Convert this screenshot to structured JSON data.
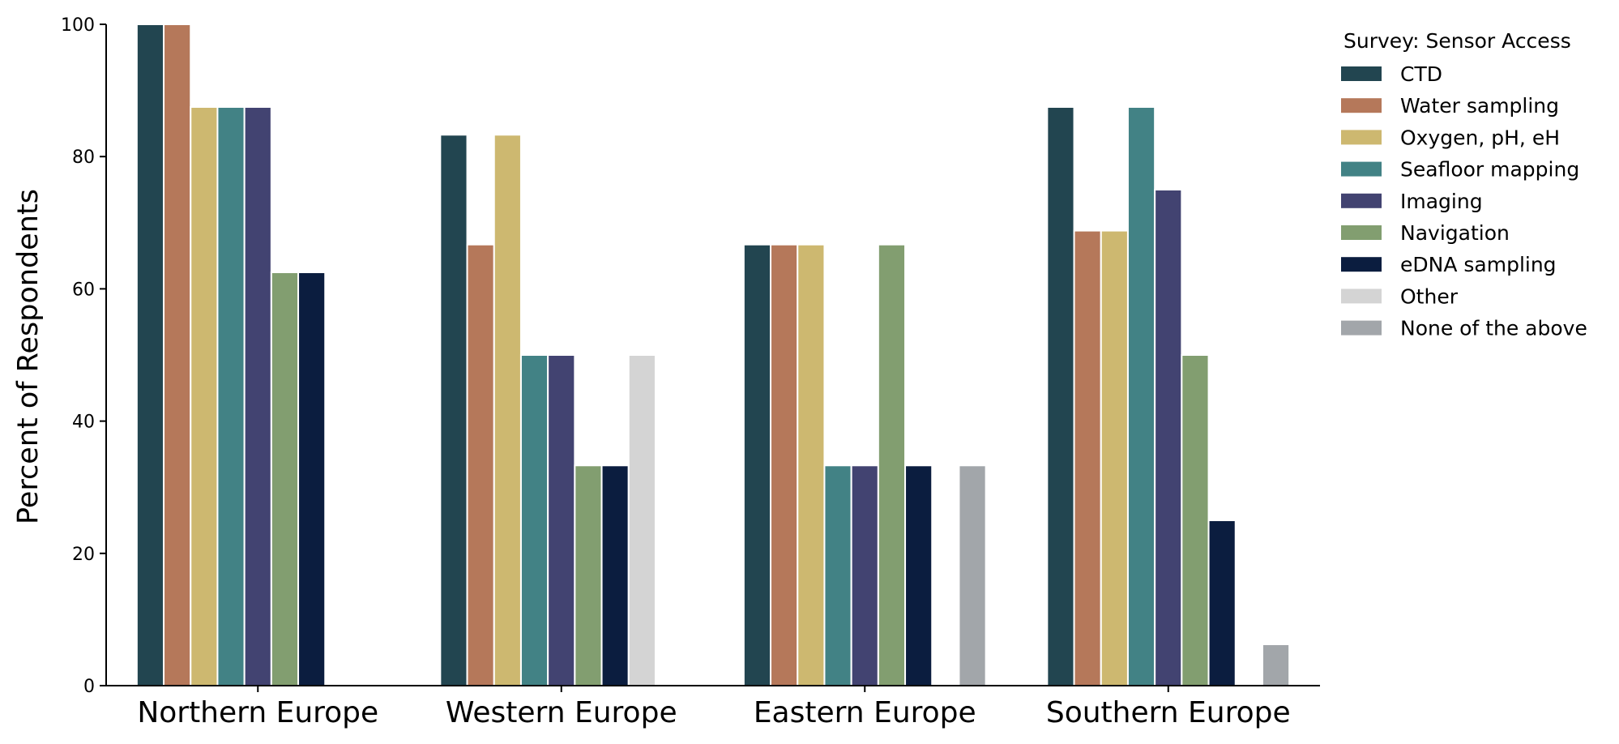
{
  "chart_data": {
    "type": "bar",
    "title": "",
    "xlabel": "",
    "ylabel": "Percent of Respondents",
    "ylim": [
      0,
      100
    ],
    "yticks": [
      "0",
      "20",
      "40",
      "60",
      "80",
      "100"
    ],
    "grid": false,
    "legend": {
      "title": "Survey: Sensor Access",
      "placement": "top-right (outside plot)"
    },
    "categories": [
      "Northern Europe",
      "Western Europe",
      "Eastern Europe",
      "Southern Europe"
    ],
    "series": [
      {
        "name": "CTD",
        "color": "#224550",
        "values": [
          100,
          83.3,
          66.7,
          87.5
        ]
      },
      {
        "name": "Water sampling",
        "color": "#b5785a",
        "values": [
          100,
          66.7,
          66.7,
          68.8
        ]
      },
      {
        "name": "Oxygen, pH, eH",
        "color": "#cdb870",
        "values": [
          87.5,
          83.3,
          66.7,
          68.8
        ]
      },
      {
        "name": "Seafloor mapping",
        "color": "#428285",
        "values": [
          87.5,
          50,
          33.3,
          87.5
        ]
      },
      {
        "name": "Imaging",
        "color": "#424371",
        "values": [
          87.5,
          50,
          33.3,
          75
        ]
      },
      {
        "name": "Navigation",
        "color": "#829e70",
        "values": [
          62.5,
          33.3,
          66.7,
          50
        ]
      },
      {
        "name": "eDNA sampling",
        "color": "#0b1d3f",
        "values": [
          62.5,
          33.3,
          33.3,
          25
        ]
      },
      {
        "name": "Other",
        "color": "#d4d4d4",
        "values": [
          0,
          50,
          0,
          0
        ]
      },
      {
        "name": "None of the above",
        "color": "#a2a6aa",
        "values": [
          0,
          0,
          33.3,
          6.25
        ]
      }
    ]
  }
}
